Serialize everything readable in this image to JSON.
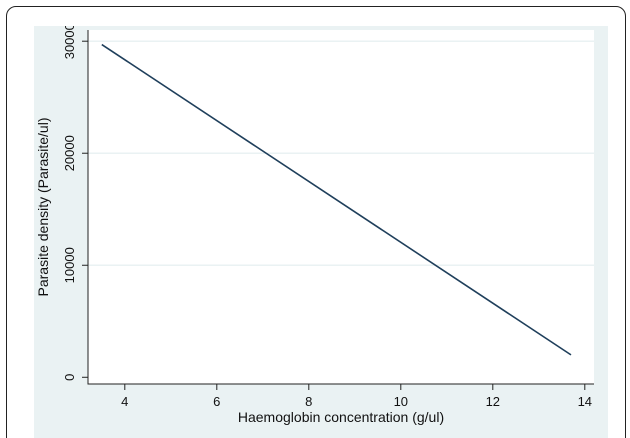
{
  "chart_data": {
    "type": "line",
    "title": "",
    "xlabel": "Haemoglobin concentration (g/ul)",
    "ylabel": "Parasite density (Parasite/ul)",
    "xlim": [
      3.2,
      14.2
    ],
    "ylim": [
      -600,
      31000
    ],
    "xticks": [
      4,
      6,
      8,
      10,
      12,
      14
    ],
    "yticks": [
      0,
      10000,
      20000,
      30000
    ],
    "xtick_labels": [
      "4",
      "6",
      "8",
      "10",
      "12",
      "14"
    ],
    "ytick_labels": [
      "0",
      "10000",
      "20000",
      "30000"
    ],
    "grid": "horizontal",
    "legend": "none",
    "series": [
      {
        "x": [
          3.5,
          13.7
        ],
        "y": [
          29700,
          2000
        ]
      }
    ],
    "colors": {
      "line": "#1f3f5b",
      "plot_background": "#ffffff",
      "panel_background": "#eaf2f3",
      "grid": "#eaf2f3",
      "axis": "#222222"
    }
  }
}
